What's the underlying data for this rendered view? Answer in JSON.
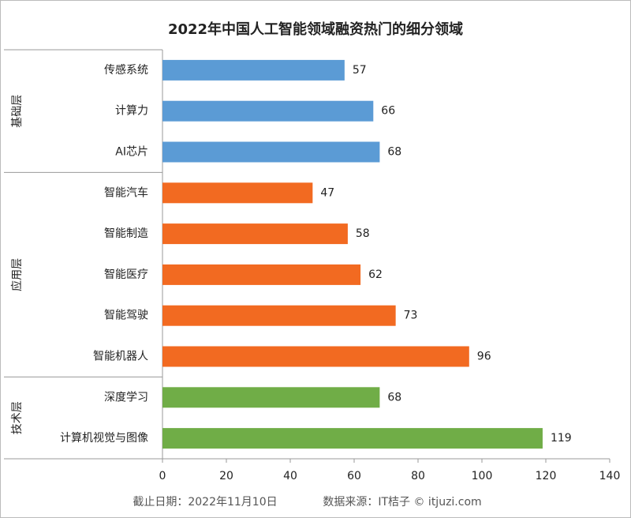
{
  "chart_data": {
    "type": "bar",
    "orientation": "horizontal",
    "title": "2022年中国人工智能领域融资热门的细分领域",
    "groups": [
      {
        "name": "基础层",
        "color": "#5b9bd5",
        "categories": [
          "传感系统",
          "计算力",
          "AI芯片"
        ],
        "values": [
          57,
          66,
          68
        ]
      },
      {
        "name": "应用层",
        "color": "#f26a21",
        "categories": [
          "智能汽车",
          "智能制造",
          "智能医疗",
          "智能驾驶",
          "智能机器人"
        ],
        "values": [
          47,
          58,
          62,
          73,
          96
        ]
      },
      {
        "name": "技术层",
        "color": "#70ad47",
        "categories": [
          "深度学习",
          "计算机视觉与图像"
        ],
        "values": [
          68,
          119
        ]
      }
    ],
    "xlim": [
      0,
      140
    ],
    "xticks": [
      0,
      20,
      40,
      60,
      80,
      100,
      120,
      140
    ],
    "footnote": [
      "截止日期：2022年11月10日",
      "数据来源：IT桔子 © itjuzi.com"
    ]
  }
}
